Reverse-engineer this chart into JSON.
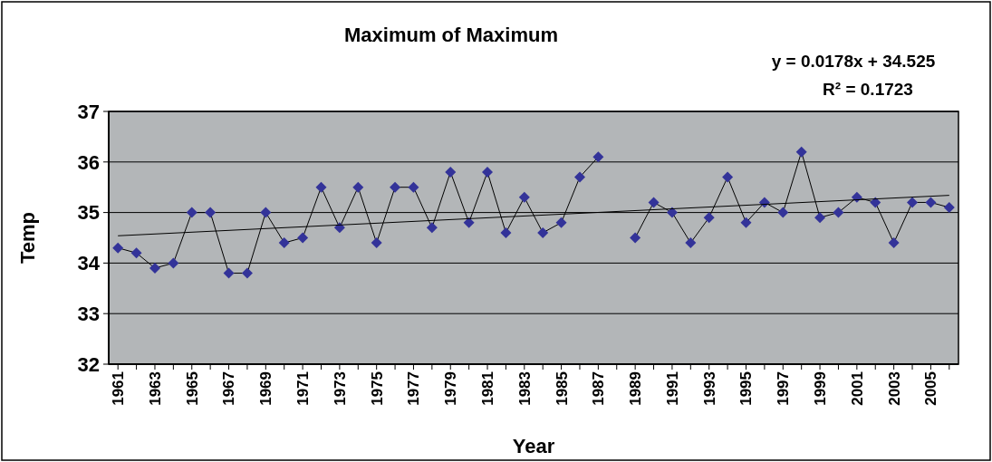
{
  "chart_data": {
    "type": "line",
    "title": "Maximum of Maximum",
    "xlabel": "Year",
    "ylabel": "Temp",
    "annotations": [
      "y = 0.0178x + 34.525",
      "R² = 0.1723"
    ],
    "xlim": [
      1960.5,
      2006.5
    ],
    "xticks": [
      1961,
      {
        "value": 1962,
        "label": null
      },
      1963,
      {
        "value": 1964,
        "label": null
      },
      1965,
      {
        "value": 1966,
        "label": null
      },
      1967,
      {
        "value": 1968,
        "label": null
      },
      1969,
      {
        "value": 1970,
        "label": null
      },
      1971,
      {
        "value": 1972,
        "label": null
      },
      1973,
      {
        "value": 1974,
        "label": null
      },
      1975,
      {
        "value": 1976,
        "label": null
      },
      1977,
      {
        "value": 1978,
        "label": null
      },
      1979,
      {
        "value": 1980,
        "label": null
      },
      1981,
      {
        "value": 1982,
        "label": null
      },
      1983,
      {
        "value": 1984,
        "label": null
      },
      1985,
      {
        "value": 1986,
        "label": null
      },
      1987,
      {
        "value": 1988,
        "label": null
      },
      1989,
      {
        "value": 1990,
        "label": null
      },
      1991,
      {
        "value": 1992,
        "label": null
      },
      1993,
      {
        "value": 1994,
        "label": null
      },
      1995,
      {
        "value": 1996,
        "label": null
      },
      1997,
      {
        "value": 1998,
        "label": null
      },
      1999,
      {
        "value": 2000,
        "label": null
      },
      2001,
      {
        "value": 2002,
        "label": null
      },
      2003,
      {
        "value": 2004,
        "label": null
      },
      2005,
      {
        "value": 2006,
        "label": null
      }
    ],
    "ylim": [
      32,
      37
    ],
    "yticks": [
      32,
      33,
      34,
      35,
      36,
      37
    ],
    "grid": "y",
    "line_style": "solid",
    "series": [
      {
        "color": "#333399",
        "marker": "diamond",
        "x": [
          1961,
          1962,
          1963,
          1964,
          1965,
          1966,
          1967,
          1968,
          1969,
          1970,
          1971,
          1972,
          1973,
          1974,
          1975,
          1976,
          1977,
          1978,
          1979,
          1980,
          1981,
          1982,
          1983,
          1984,
          1985,
          1986,
          1987,
          1988,
          1989,
          1990,
          1991,
          1992,
          1993,
          1994,
          1995,
          1996,
          1997,
          1998,
          1999,
          2000,
          2001,
          2002,
          2003,
          2004,
          2005,
          2006
        ],
        "values": [
          34.3,
          34.2,
          33.9,
          34.0,
          35.0,
          35.0,
          33.8,
          33.8,
          35.0,
          34.4,
          34.5,
          35.5,
          34.7,
          35.5,
          34.4,
          35.5,
          35.5,
          34.7,
          35.8,
          34.8,
          35.8,
          34.6,
          35.3,
          34.6,
          34.8,
          35.7,
          36.1,
          null,
          34.5,
          35.2,
          35.0,
          34.4,
          34.9,
          35.7,
          34.8,
          35.2,
          35.0,
          36.2,
          34.9,
          35.0,
          35.3,
          35.2,
          34.4,
          35.2,
          35.2,
          35.1
        ]
      },
      {
        "color": "#000000",
        "marker": "none",
        "x": [
          1961,
          2006
        ],
        "values": [
          34.54,
          35.34
        ]
      }
    ]
  }
}
